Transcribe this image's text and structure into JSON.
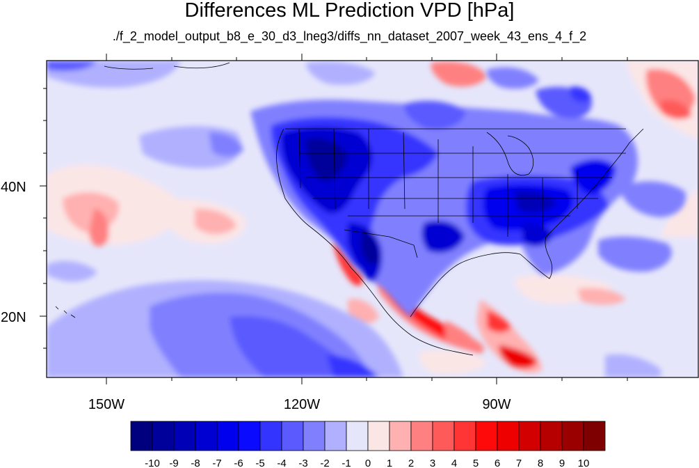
{
  "title": "Differences ML Prediction VPD [hPa]",
  "subtitle": "./f_2_model_output_b8_e_30_d3_lneg3/diffs_nn_dataset_2007_week_43_ens_4_f_2",
  "map": {
    "lat_labels": [
      "40N",
      "20N"
    ],
    "lon_labels": [
      "150W",
      "120W",
      "90W"
    ]
  },
  "colorbar": {
    "labels": [
      "-10",
      "-9",
      "-8",
      "-7",
      "-6",
      "-5",
      "-4",
      "-3",
      "-2",
      "-1",
      "0",
      "1",
      "2",
      "3",
      "4",
      "5",
      "6",
      "7",
      "8",
      "9",
      "10"
    ],
    "colors": [
      "#00007f",
      "#00009a",
      "#0000b6",
      "#0000d2",
      "#0000ee",
      "#0a0aff",
      "#3434ff",
      "#5a5aff",
      "#8080ff",
      "#b0b0ff",
      "#e6e6fb",
      "#fbe6e6",
      "#ffb0b0",
      "#ff8080",
      "#ff5a5a",
      "#ff3434",
      "#ff0a0a",
      "#ee0000",
      "#d20000",
      "#b60000",
      "#9a0000",
      "#7f0000"
    ]
  }
}
